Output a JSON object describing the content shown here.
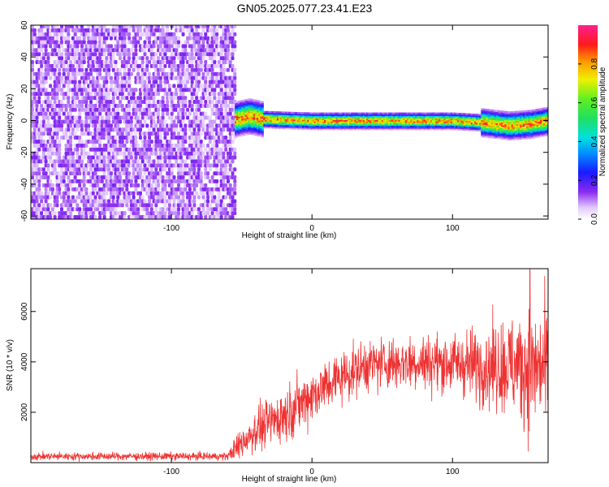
{
  "title": "GN05.2025.077.23.41.E23",
  "colors": {
    "snr_line": "#ee3333",
    "noise_purple": "#7a2cf0",
    "ridge_core": "#e0203a",
    "ridge_mid": "#2bd84a",
    "ridge_edge": "#2a30e0"
  },
  "chart_data": [
    {
      "type": "heatmap",
      "xlabel": "Height of straight line (km)",
      "ylabel": "Frequency (Hz)",
      "xlim": [
        -200,
        168
      ],
      "ylim": [
        -62,
        60
      ],
      "xticks": [
        -100,
        0,
        100
      ],
      "yticks": [
        -60,
        -40,
        -20,
        0,
        20,
        40,
        60
      ],
      "grid": false,
      "colorbar": {
        "label": "Normalized spectral amplitude",
        "ticks": [
          0.0,
          0.2,
          0.4,
          0.6,
          0.8
        ],
        "range": [
          0,
          1
        ],
        "colormap": "rainbow (white-violet-blue-cyan-green-yellow-red-magenta)"
      },
      "regions": [
        {
          "description": "broadband noise",
          "x": [
            -200,
            -55
          ],
          "freq": [
            -62,
            60
          ],
          "amplitude": [
            0.0,
            0.25
          ]
        },
        {
          "description": "narrow ridge near 0 Hz",
          "x": [
            -55,
            168
          ],
          "freq_center": 0,
          "amplitude_peak": 0.95
        }
      ],
      "ridge_center": [
        {
          "x": -55,
          "y": 1
        },
        {
          "x": -45,
          "y": 3
        },
        {
          "x": -35,
          "y": 1
        },
        {
          "x": 0,
          "y": 0
        },
        {
          "x": 40,
          "y": 0
        },
        {
          "x": 80,
          "y": 0
        },
        {
          "x": 100,
          "y": 0
        },
        {
          "x": 120,
          "y": -1
        },
        {
          "x": 140,
          "y": -3
        },
        {
          "x": 155,
          "y": -2
        },
        {
          "x": 168,
          "y": 0
        }
      ]
    },
    {
      "type": "line",
      "xlabel": "Height of straight line (km)",
      "ylabel": "SNR (10 * v/v)",
      "xlim": [
        -200,
        168
      ],
      "ylim": [
        0,
        7700
      ],
      "xticks": [
        -100,
        0,
        100
      ],
      "yticks": [
        2000,
        4000,
        6000
      ],
      "grid": false,
      "series": [
        {
          "mean": [
            {
              "x": -200,
              "y": 250
            },
            {
              "x": -60,
              "y": 250
            },
            {
              "x": -50,
              "y": 800
            },
            {
              "x": -40,
              "y": 1300
            },
            {
              "x": -20,
              "y": 1900
            },
            {
              "x": 0,
              "y": 2700
            },
            {
              "x": 20,
              "y": 3400
            },
            {
              "x": 40,
              "y": 3900
            },
            {
              "x": 70,
              "y": 4000
            },
            {
              "x": 100,
              "y": 3950
            },
            {
              "x": 130,
              "y": 3850
            },
            {
              "x": 150,
              "y": 3800
            },
            {
              "x": 168,
              "y": 3700
            }
          ],
          "spread": [
            {
              "x": -200,
              "y": 200
            },
            {
              "x": -60,
              "y": 200
            },
            {
              "x": -50,
              "y": 900
            },
            {
              "x": -20,
              "y": 1400
            },
            {
              "x": 0,
              "y": 1400
            },
            {
              "x": 40,
              "y": 1300
            },
            {
              "x": 100,
              "y": 1500
            },
            {
              "x": 130,
              "y": 2200
            },
            {
              "x": 150,
              "y": 3000
            },
            {
              "x": 168,
              "y": 3200
            }
          ],
          "peak": {
            "x": 155,
            "y": 7700
          }
        }
      ]
    }
  ]
}
